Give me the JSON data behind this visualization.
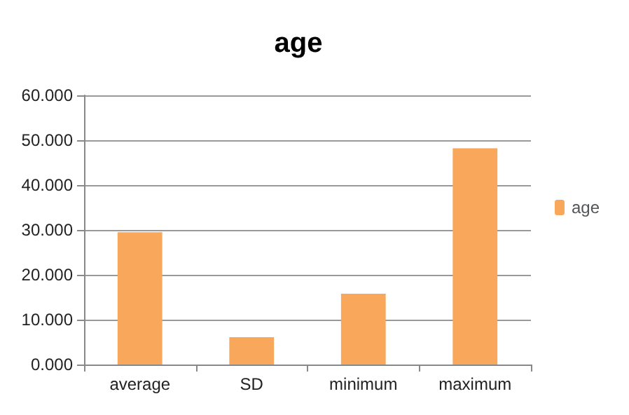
{
  "chart_data": {
    "type": "bar",
    "title": "age",
    "categories": [
      "average",
      "SD",
      "minimum",
      "maximum"
    ],
    "series": [
      {
        "name": "age",
        "color": "#f9a85b",
        "values": [
          29.5,
          6.1,
          15.8,
          48.2
        ]
      }
    ],
    "ylim": [
      0,
      60
    ],
    "yticks": [
      {
        "value": 0,
        "label": "0.000"
      },
      {
        "value": 10,
        "label": "10.000"
      },
      {
        "value": 20,
        "label": "20.000"
      },
      {
        "value": 30,
        "label": "30.000"
      },
      {
        "value": 40,
        "label": "40.000"
      },
      {
        "value": 50,
        "label": "50.000"
      },
      {
        "value": 60,
        "label": "60.000"
      }
    ],
    "grid": "y",
    "legend": "right"
  }
}
